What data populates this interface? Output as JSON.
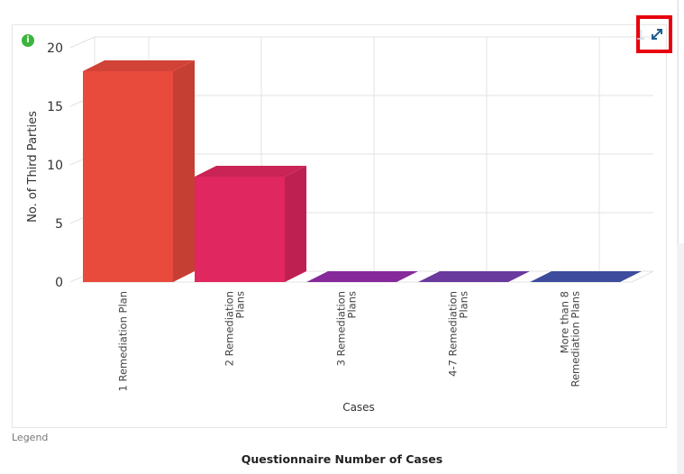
{
  "chart_data": {
    "type": "bar",
    "title": "Questionnaire Number of Cases",
    "xlabel": "Cases",
    "ylabel": "No. of Third Parties",
    "ylim": [
      0,
      20
    ],
    "yticks": [
      "0",
      "5",
      "10",
      "15",
      "20"
    ],
    "categories": [
      [
        "1 Remediation Plan"
      ],
      [
        "2 Remediation",
        "Plans"
      ],
      [
        "3 Remediation",
        "Plans"
      ],
      [
        "4-7 Remediation",
        "Plans"
      ],
      [
        "More than 8",
        "Remediation Plans"
      ]
    ],
    "values": [
      18,
      9,
      0,
      0,
      0
    ],
    "colors": [
      "#e84a3c",
      "#e0275f",
      "#86299a",
      "#6a3a9e",
      "#3d4c9c"
    ],
    "legend_label": "Legend"
  },
  "icons": {
    "info": "info-icon",
    "download": "download-icon",
    "expand": "expand-icon"
  }
}
